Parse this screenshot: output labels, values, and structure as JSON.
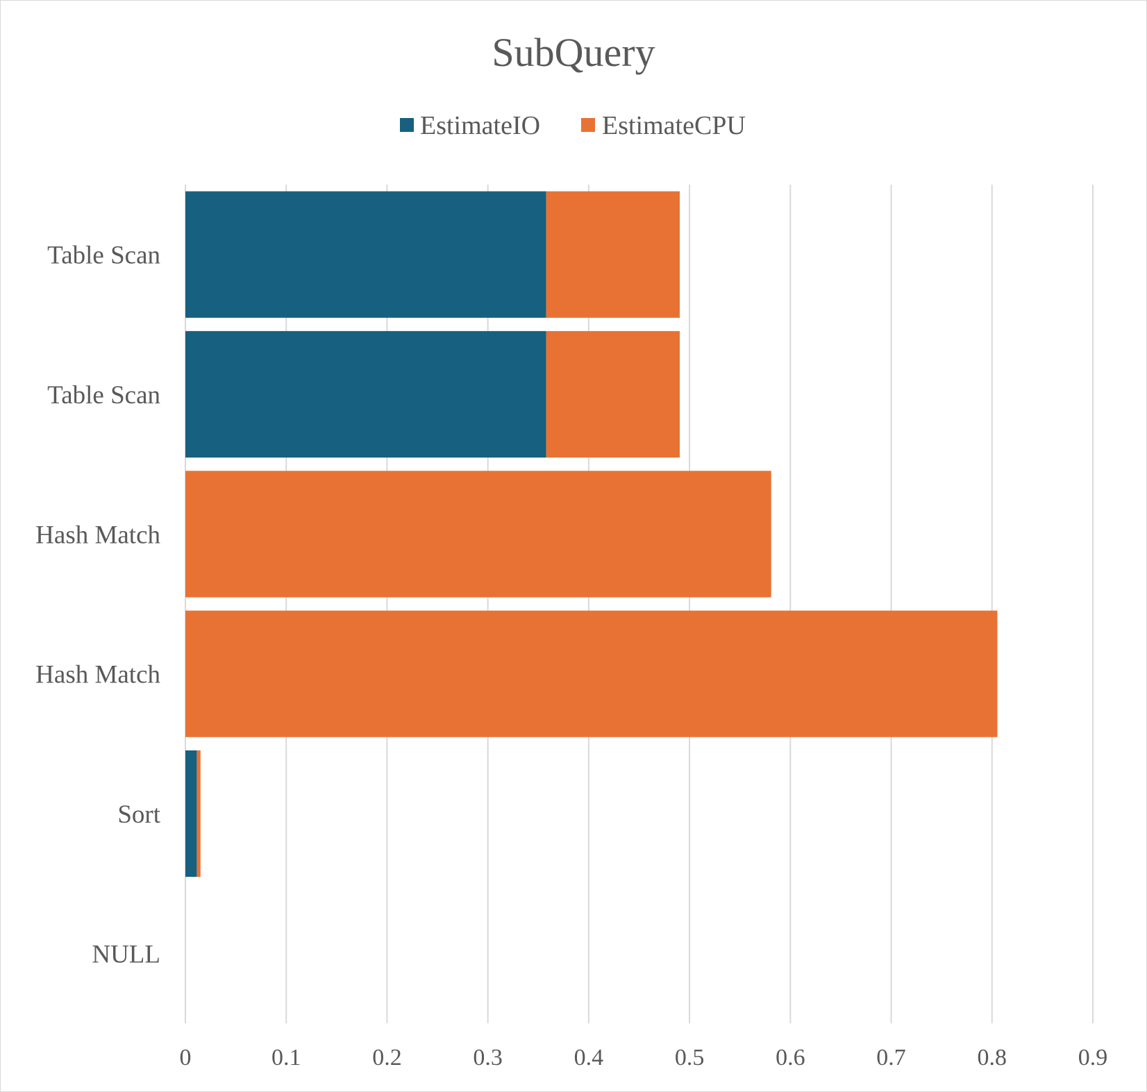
{
  "chart_data": {
    "type": "bar",
    "orientation": "horizontal",
    "stacked": true,
    "title": "SubQuery",
    "categories": [
      "Table Scan",
      "Table Scan",
      "Hash Match",
      "Hash Match",
      "Sort",
      "NULL"
    ],
    "series": [
      {
        "name": "EstimateIO",
        "color": "#17607f",
        "values": [
          0.3578,
          0.3578,
          0,
          0,
          0.0113,
          0
        ]
      },
      {
        "name": "EstimateCPU",
        "color": "#e87234",
        "values": [
          0.1325,
          0.1325,
          0.581,
          0.8053,
          0.0037,
          0
        ]
      }
    ],
    "x_ticks": [
      "0",
      "0.1",
      "0.2",
      "0.3",
      "0.4",
      "0.5",
      "0.6",
      "0.7",
      "0.8",
      "0.9"
    ],
    "xlim": [
      0,
      0.9
    ],
    "grid": true,
    "legend_position": "top"
  }
}
